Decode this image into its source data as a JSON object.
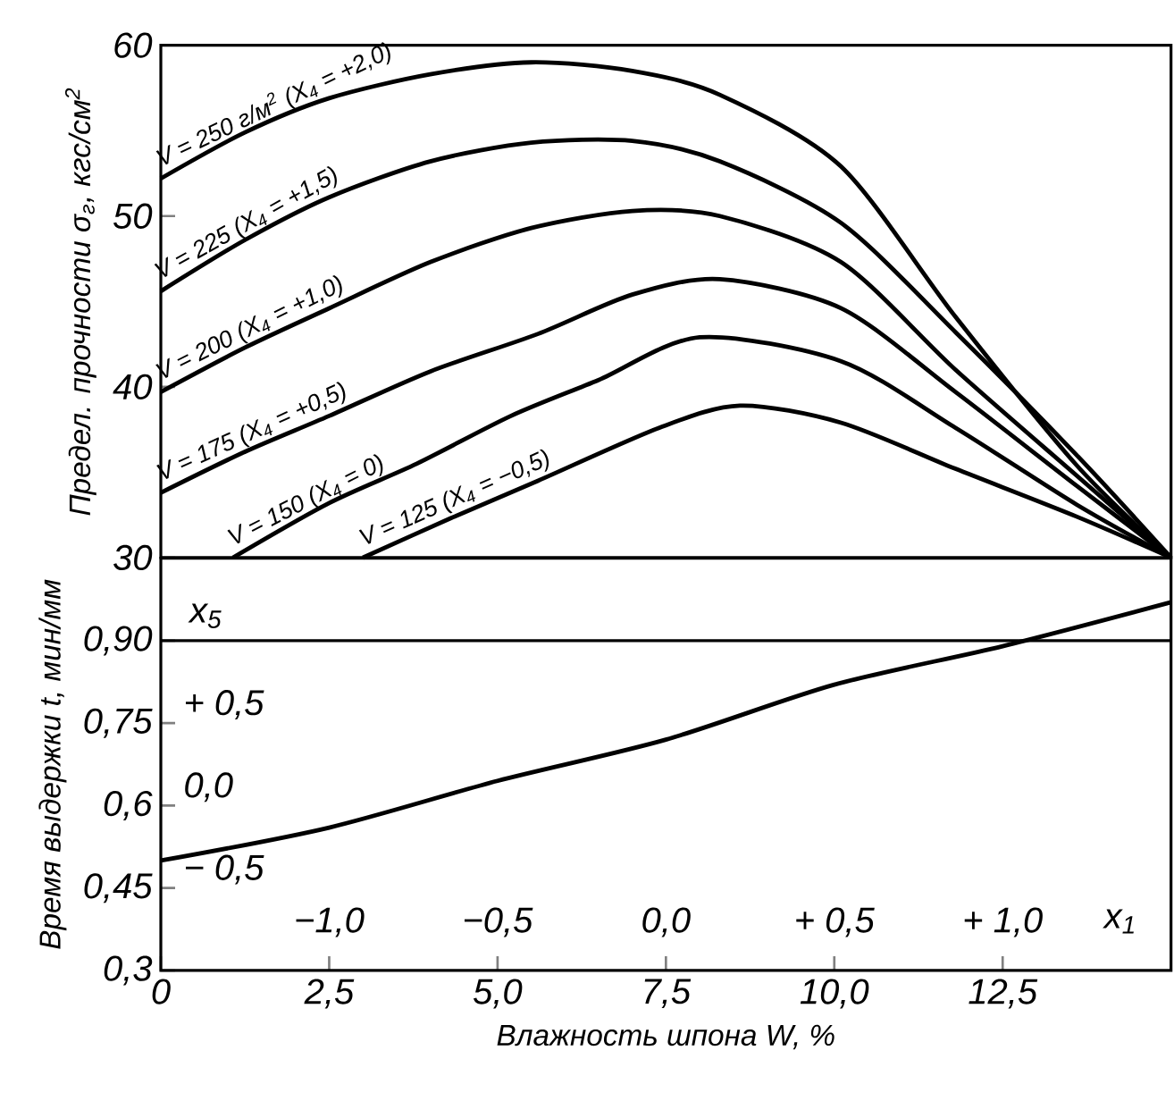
{
  "chart_data": [
    {
      "type": "line",
      "ylabel": "Предел. прочности σ$_{г}$, кгс/см$^{2}$",
      "xlim": [
        0,
        15
      ],
      "ylim": [
        30,
        60
      ],
      "yticks": [
        30,
        40,
        50,
        60
      ],
      "tick_labels": "y",
      "series": [
        {
          "name": "V = 250 г/м$^{2}$ (X$_{4}$ = +2,0)",
          "color": "#000000",
          "x": [
            0,
            1.25,
            2.5,
            4,
            5.5,
            7,
            8.3,
            10.1,
            11.8,
            13.6,
            15
          ],
          "values": [
            52.2,
            54.9,
            56.9,
            58.3,
            59,
            58.5,
            57.1,
            52.9,
            44.1,
            35.4,
            30
          ]
        },
        {
          "name": "V = 225 (X$_{4}$ = +1,5)",
          "color": "#000000",
          "x": [
            0,
            1.25,
            2.5,
            4,
            5.5,
            7,
            8.3,
            10.1,
            11.8,
            13.6,
            15
          ],
          "values": [
            45.6,
            48.6,
            51.1,
            53.2,
            54.3,
            54.4,
            53.2,
            49.6,
            43.2,
            36,
            30
          ]
        },
        {
          "name": "V = 200 (X$_{4}$ = +1,0)",
          "color": "#000000",
          "x": [
            0,
            1.25,
            2.5,
            4,
            5.5,
            7,
            8.3,
            10.1,
            11.8,
            13.6,
            15
          ],
          "values": [
            39.7,
            42.3,
            44.6,
            47.3,
            49.3,
            50.3,
            50,
            47.3,
            41,
            34.8,
            30
          ]
        },
        {
          "name": "V = 175 (X$_{4}$ = +0,5)",
          "color": "#000000",
          "x": [
            0,
            1.25,
            2.5,
            4,
            5.6,
            7,
            8.3,
            10.1,
            11.8,
            13.6,
            15
          ],
          "values": [
            33.8,
            36.2,
            38.3,
            40.9,
            43.1,
            45.4,
            46.3,
            44.6,
            39.7,
            34.2,
            30
          ]
        },
        {
          "name": "V = 150 (X$_{4}$ = 0)",
          "color": "#000000",
          "x": [
            1.07,
            2.5,
            3.8,
            5.2,
            6.5,
            8,
            10.1,
            11.8,
            13.6,
            15
          ],
          "values": [
            30,
            33.2,
            35.5,
            38.3,
            40.4,
            42.9,
            41.5,
            37.6,
            33.1,
            30
          ]
        },
        {
          "name": "V = 125 (X$_{4}$ = −0,5)",
          "color": "#000000",
          "x": [
            3,
            4.3,
            5.6,
            7.4,
            8.6,
            10.1,
            11.8,
            13.6,
            15
          ],
          "values": [
            30,
            32.3,
            34.5,
            37.6,
            38.9,
            37.9,
            35.2,
            32.4,
            30
          ]
        }
      ]
    },
    {
      "type": "line",
      "xlabel": "Влажность шпона W, %",
      "ylabel": "Время выдержки t, мин/мм",
      "xlim": [
        0,
        15
      ],
      "ylim": [
        0.3,
        1.05
      ],
      "xticks": [
        0,
        {
          "value": 2.5,
          "label": "2,5"
        },
        {
          "value": 5,
          "label": "5,0"
        },
        {
          "value": 7.5,
          "label": "7,5"
        },
        {
          "value": 10,
          "label": "10,0"
        },
        {
          "value": 12.5,
          "label": "12,5"
        }
      ],
      "yticks": [
        {
          "value": 0.3,
          "label": "0,3"
        },
        {
          "value": 0.45,
          "label": "0,45"
        },
        {
          "value": 0.6,
          "label": "0,6"
        },
        {
          "value": 0.75,
          "label": "0,75"
        },
        {
          "value": 0.9,
          "label": "0,90"
        }
      ],
      "x2lim": [
        -1.5,
        1.5
      ],
      "x2label": "x$_{1}$",
      "x2ticks": [
        {
          "value": -1,
          "label": "−1,0"
        },
        {
          "value": -0.5,
          "label": "−0,5"
        },
        {
          "value": 0,
          "label": "0,0"
        },
        {
          "value": 0.5,
          "label": "+ 0,5"
        },
        {
          "value": 1,
          "label": "+ 1,0"
        }
      ],
      "y2lim": [
        -1,
        1.5
      ],
      "y2label": "x$_{5}$",
      "y2ticks": [
        {
          "value": -0.5,
          "label": "− 0,5"
        },
        {
          "value": 0,
          "label": "0,0"
        },
        {
          "value": 0.5,
          "label": "+ 0,5"
        }
      ],
      "ref_lines": [
        {
          "axis": "y",
          "value": 0.9
        }
      ],
      "series": [
        {
          "color": "#000000",
          "x": [
            0,
            2.5,
            5,
            7.5,
            10,
            12.5,
            15
          ],
          "values": [
            0.5,
            0.56,
            0.645,
            0.72,
            0.82,
            0.89,
            0.97
          ]
        }
      ]
    }
  ]
}
